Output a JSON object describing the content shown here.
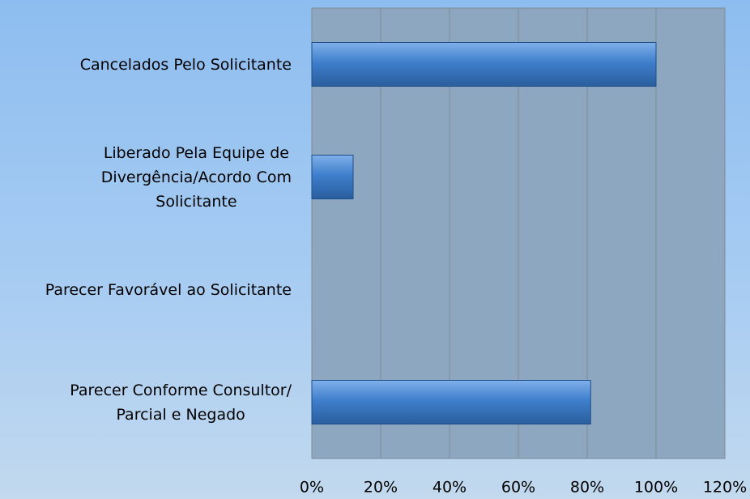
{
  "chart_data": {
    "type": "bar",
    "orientation": "horizontal",
    "categories": [
      "Cancelados Pelo Solicitante",
      "Liberado Pela Equipe de\nDivergência/Acordo Com\nSolicitante",
      "Parecer Favorável ao Solicitante",
      "Parecer Conforme Consultor/\nParcial e Negado"
    ],
    "values": [
      100,
      12,
      0,
      81
    ],
    "color": "#3f7fcc",
    "xlim": [
      0,
      120
    ],
    "xticks": [
      {
        "value": 0,
        "label": "0%"
      },
      {
        "value": 20,
        "label": "20%"
      },
      {
        "value": 40,
        "label": "40%"
      },
      {
        "value": 60,
        "label": "60%"
      },
      {
        "value": 80,
        "label": "80%"
      },
      {
        "value": 100,
        "label": "100%"
      },
      {
        "value": 120,
        "label": "120%"
      }
    ],
    "grid": true
  }
}
